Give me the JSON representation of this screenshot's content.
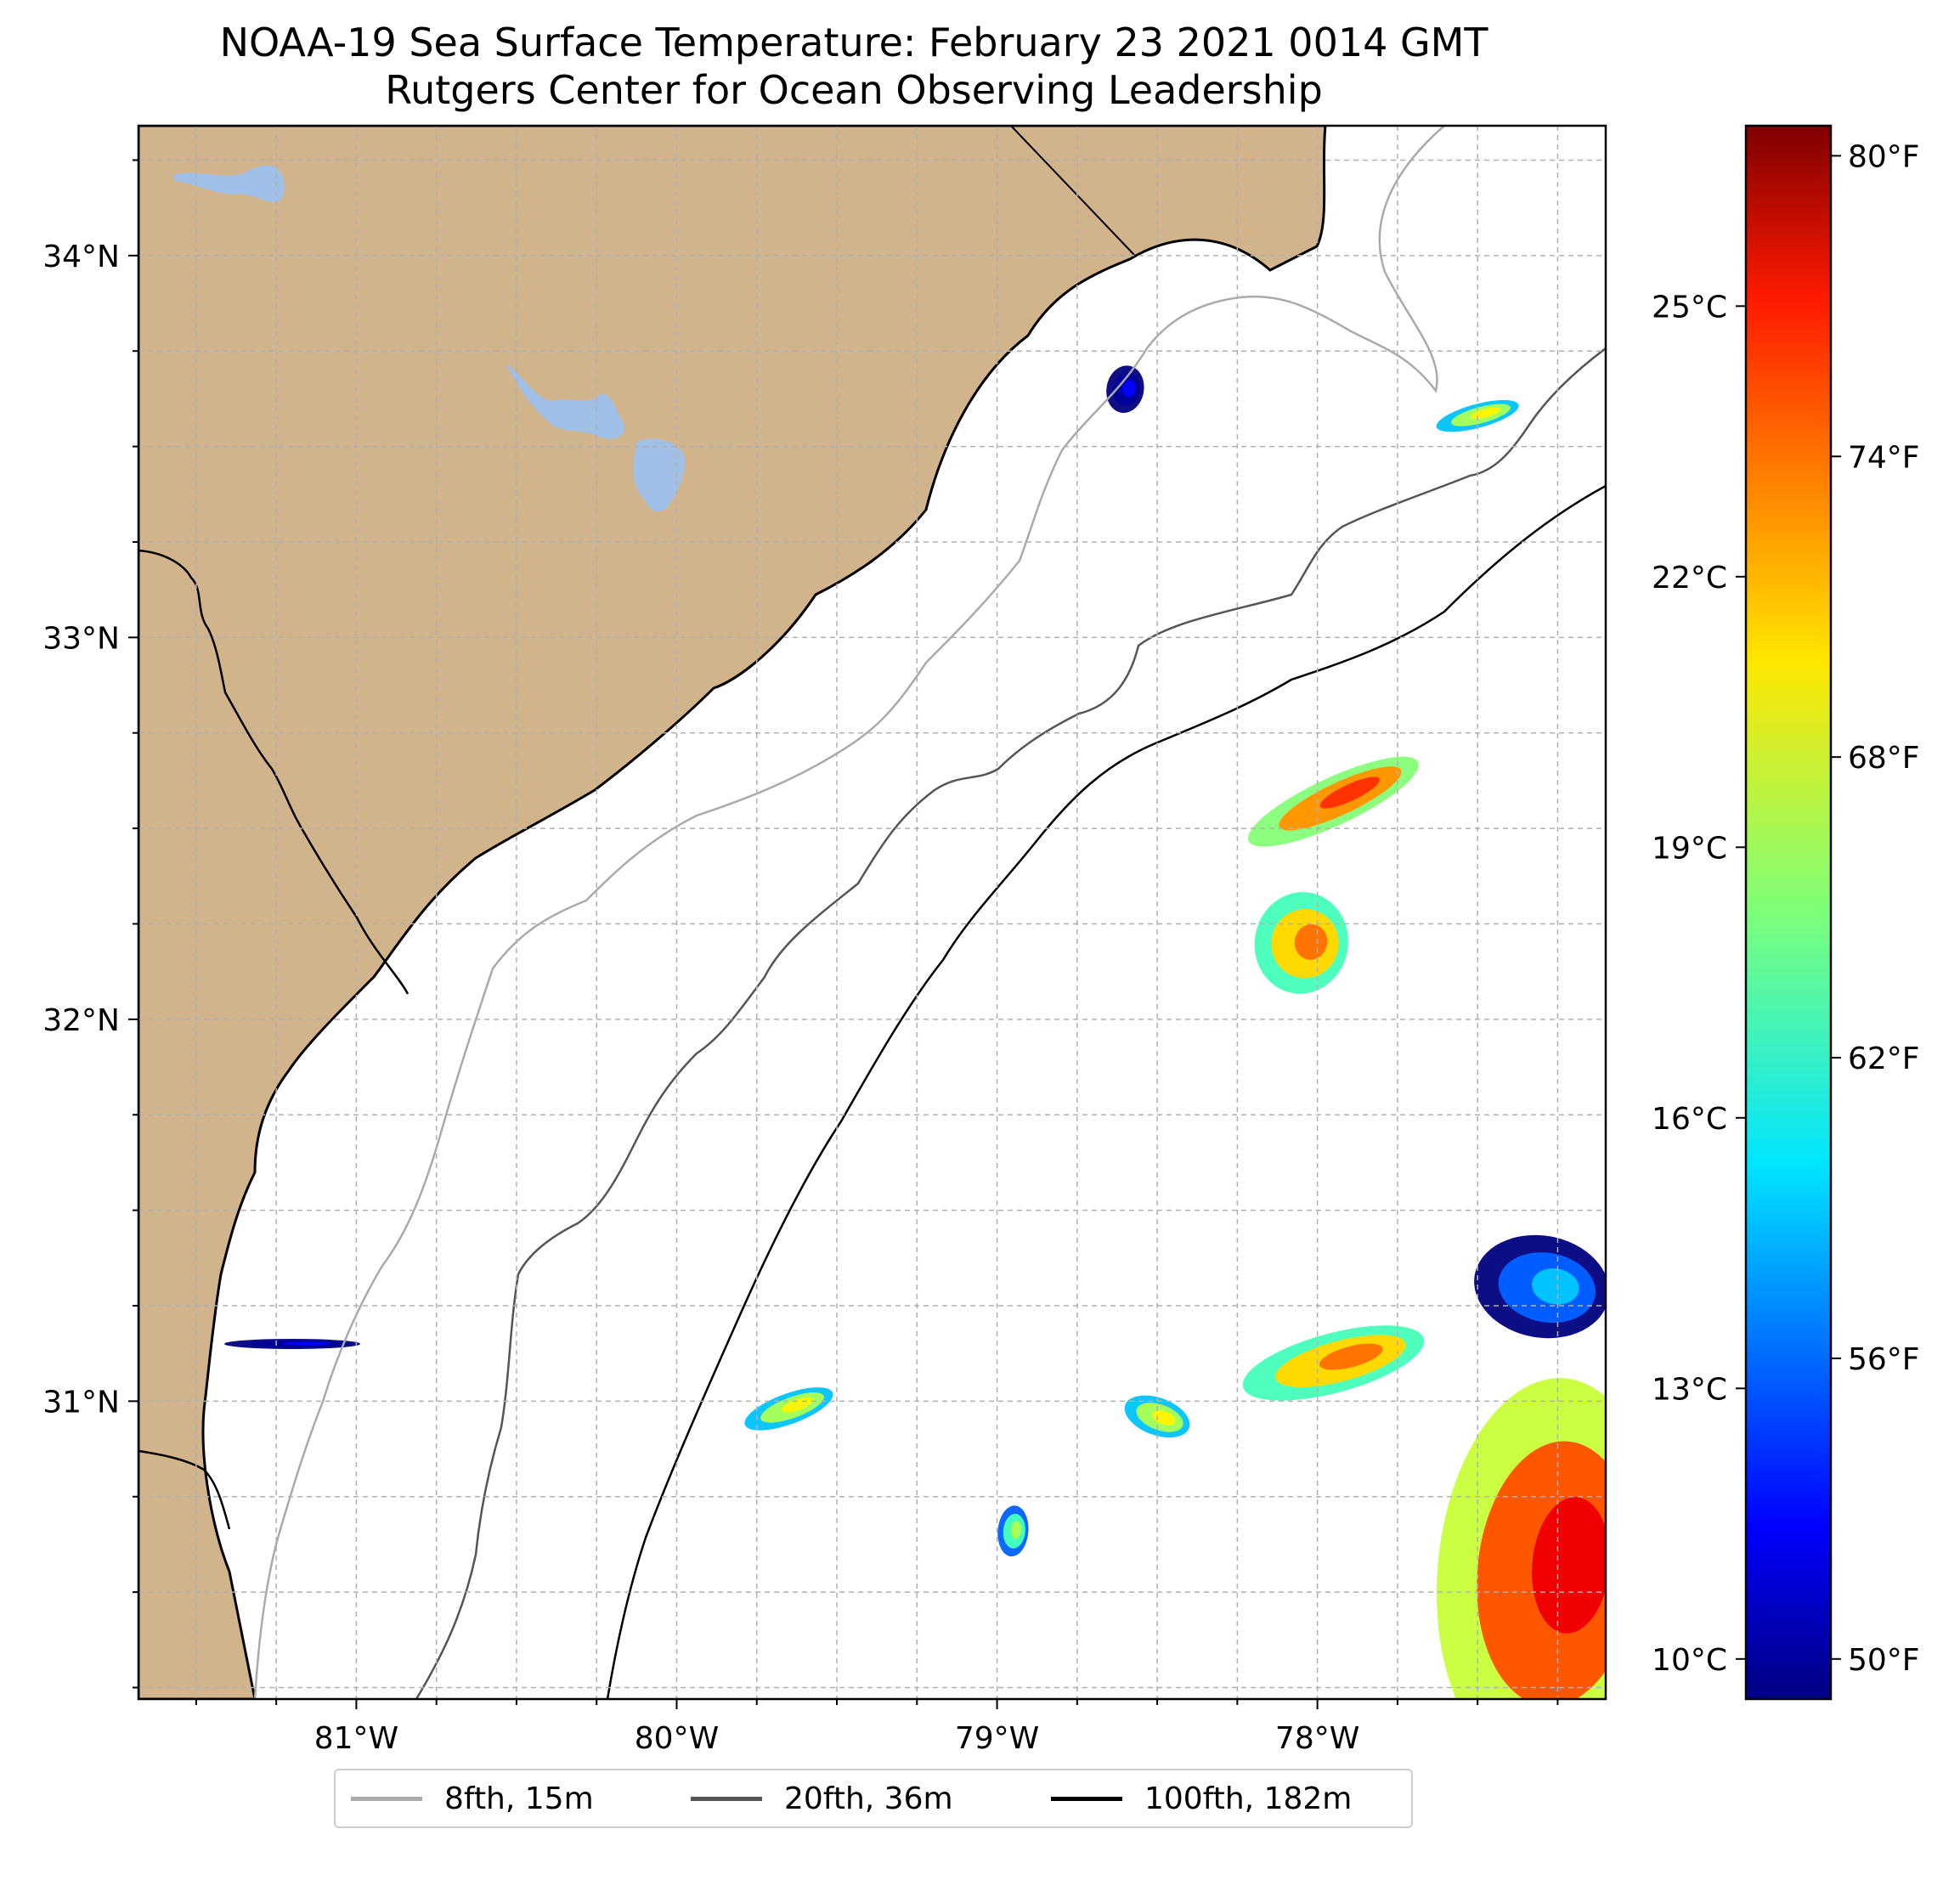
{
  "title": {
    "line1": "NOAA-19 Sea Surface Temperature: February 23 2021 0014 GMT",
    "line2": "Rutgers Center for Ocean Observing Leadership"
  },
  "map": {
    "lon_range": [
      -81.68,
      -77.1
    ],
    "lat_range": [
      30.22,
      34.34
    ],
    "lat_ticks": [
      {
        "value": 34,
        "label": "34°N"
      },
      {
        "value": 33,
        "label": "33°N"
      },
      {
        "value": 32,
        "label": "32°N"
      },
      {
        "value": 31,
        "label": "31°N"
      }
    ],
    "lon_ticks": [
      {
        "value": -81,
        "label": "81°W"
      },
      {
        "value": -80,
        "label": "80°W"
      },
      {
        "value": -79,
        "label": "79°W"
      },
      {
        "value": -78,
        "label": "78°W"
      }
    ],
    "gridline_spacing_deg": 0.25,
    "colors": {
      "land": "#d2b48c",
      "water_body": "#9fbfe6",
      "ocean": "#ffffff",
      "coastline": "#000000",
      "grid": "#b0b0b0",
      "isobath_8fth": "#aaaaaa",
      "isobath_20fth": "#555555",
      "isobath_100fth": "#000000"
    }
  },
  "colorbar": {
    "colormap": "jet",
    "range_f": [
      49.2,
      80.6
    ],
    "fahrenheit_ticks": [
      {
        "value": 50,
        "label": "50°F"
      },
      {
        "value": 56,
        "label": "56°F"
      },
      {
        "value": 62,
        "label": "62°F"
      },
      {
        "value": 68,
        "label": "68°F"
      },
      {
        "value": 74,
        "label": "74°F"
      },
      {
        "value": 80,
        "label": "80°F"
      }
    ],
    "celsius_ticks": [
      {
        "value": 10,
        "label": "10°C"
      },
      {
        "value": 13,
        "label": "13°C"
      },
      {
        "value": 16,
        "label": "16°C"
      },
      {
        "value": 19,
        "label": "19°C"
      },
      {
        "value": 22,
        "label": "22°C"
      },
      {
        "value": 25,
        "label": "25°C"
      }
    ]
  },
  "legend": {
    "items": [
      {
        "label": "8fth, 15m",
        "color": "#aaaaaa"
      },
      {
        "label": "20fth, 36m",
        "color": "#555555"
      },
      {
        "label": "100fth, 182m",
        "color": "#000000"
      }
    ]
  },
  "sst_patches": [
    {
      "lon": -77.95,
      "lat": 32.57,
      "temp_f": 72,
      "name": "patch-north-plume"
    },
    {
      "lon": -78.05,
      "lat": 32.2,
      "temp_f": 70,
      "name": "patch-mid-plume"
    },
    {
      "lon": -77.95,
      "lat": 31.1,
      "temp_f": 70,
      "name": "patch-east-31n"
    },
    {
      "lon": -78.5,
      "lat": 30.96,
      "temp_f": 66,
      "name": "patch-small-31n"
    },
    {
      "lon": -79.65,
      "lat": 30.98,
      "temp_f": 66,
      "name": "patch-west-31n"
    },
    {
      "lon": -78.95,
      "lat": 30.66,
      "temp_f": 63,
      "name": "patch-south-small"
    },
    {
      "lon": -77.3,
      "lat": 31.3,
      "temp_f": 56,
      "name": "patch-east-cool"
    },
    {
      "lon": -77.28,
      "lat": 30.55,
      "temp_f": 74,
      "name": "patch-southeast-warm"
    },
    {
      "lon": -77.5,
      "lat": 33.58,
      "temp_f": 66,
      "name": "patch-northeast-edge"
    },
    {
      "lon": -78.6,
      "lat": 33.65,
      "temp_f": 50,
      "name": "patch-onslow-cold"
    },
    {
      "lon": -81.2,
      "lat": 31.15,
      "temp_f": 50,
      "name": "patch-coastal-cold"
    }
  ]
}
